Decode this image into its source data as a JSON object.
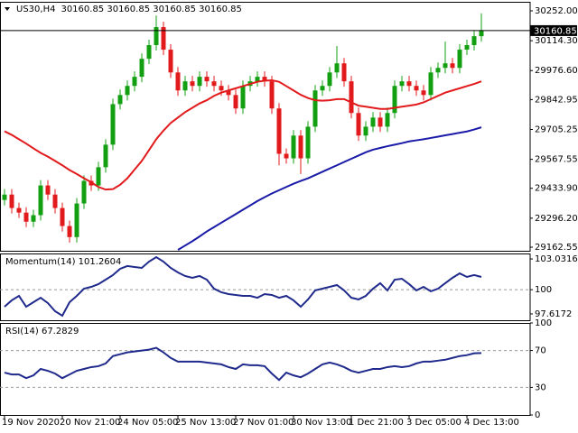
{
  "chart_data": [
    {
      "type": "candlestick",
      "title": "US30,H4",
      "subtitle": "30160.85 30160.85 30160.85 30160.85",
      "categories": [
        "19 Nov 2020",
        null,
        null,
        null,
        null,
        null,
        null,
        null,
        "20 Nov 21:00",
        null,
        null,
        null,
        null,
        null,
        null,
        null,
        "24 Nov 05:00",
        null,
        null,
        null,
        null,
        null,
        null,
        null,
        "25 Nov 13:00",
        null,
        null,
        null,
        null,
        null,
        null,
        null,
        "27 Nov 01:00",
        null,
        null,
        null,
        null,
        null,
        null,
        null,
        "30 Nov 13:00",
        null,
        null,
        null,
        null,
        null,
        null,
        null,
        "1 Dec 21:00",
        null,
        null,
        null,
        null,
        null,
        null,
        null,
        "3 Dec 05:00",
        null,
        null,
        null,
        null,
        null,
        null,
        null,
        "4 Dec 13:00",
        null,
        null
      ],
      "open": [
        29380,
        29405,
        29343,
        29322,
        29280,
        29310,
        29447,
        29405,
        29343,
        29260,
        29209,
        29364,
        29468,
        29447,
        29531,
        29635,
        29822,
        29864,
        29906,
        29948,
        30031,
        30094,
        30177,
        30073,
        29968,
        29885,
        29927,
        29906,
        29948,
        29927,
        29906,
        29885,
        29864,
        29802,
        29906,
        29927,
        29948,
        29927,
        29802,
        29593,
        29572,
        29677,
        29572,
        29718,
        29885,
        29906,
        29968,
        30010,
        29927,
        29781,
        29677,
        29718,
        29760,
        29718,
        29781,
        29906,
        29927,
        29906,
        29885,
        29864,
        29968,
        29989,
        30010,
        29989,
        30073,
        30094,
        30135
      ],
      "high": [
        29430,
        29430,
        29368,
        29347,
        29335,
        29472,
        29472,
        29430,
        29368,
        29285,
        29389,
        29493,
        29493,
        29556,
        29660,
        29847,
        29889,
        29931,
        29973,
        30056,
        30119,
        30230,
        30202,
        30098,
        29993,
        29952,
        29952,
        29973,
        29973,
        29952,
        29931,
        29910,
        29889,
        29931,
        29952,
        29973,
        29973,
        29952,
        29827,
        29618,
        29702,
        29702,
        29743,
        29910,
        29931,
        29993,
        30090,
        30035,
        29952,
        29806,
        29743,
        29785,
        29785,
        29806,
        29931,
        29952,
        29952,
        29931,
        29910,
        29993,
        30014,
        30110,
        30035,
        30098,
        30119,
        30160,
        30240
      ],
      "low": [
        29355,
        29318,
        29297,
        29255,
        29255,
        29285,
        29380,
        29318,
        29235,
        29184,
        29184,
        29339,
        29422,
        29422,
        29506,
        29610,
        29797,
        29839,
        29881,
        29923,
        30006,
        30069,
        30048,
        29943,
        29860,
        29860,
        29881,
        29881,
        29902,
        29881,
        29860,
        29839,
        29777,
        29777,
        29881,
        29902,
        29902,
        29777,
        29540,
        29547,
        29547,
        29500,
        29547,
        29693,
        29860,
        29881,
        29943,
        29902,
        29756,
        29652,
        29652,
        29693,
        29693,
        29693,
        29756,
        29881,
        29881,
        29860,
        29839,
        29839,
        29943,
        29964,
        29964,
        29964,
        30048,
        30069,
        30110
      ],
      "close": [
        29405,
        29343,
        29322,
        29280,
        29310,
        29447,
        29405,
        29343,
        29260,
        29209,
        29364,
        29468,
        29447,
        29531,
        29635,
        29822,
        29864,
        29906,
        29948,
        30031,
        30094,
        30177,
        30073,
        29968,
        29885,
        29927,
        29906,
        29948,
        29927,
        29906,
        29885,
        29864,
        29802,
        29906,
        29927,
        29948,
        29927,
        29802,
        29593,
        29572,
        29677,
        29572,
        29718,
        29885,
        29906,
        29968,
        30010,
        29927,
        29781,
        29677,
        29718,
        29760,
        29718,
        29781,
        29906,
        29927,
        29906,
        29885,
        29864,
        29968,
        29989,
        30010,
        29989,
        30073,
        30094,
        30135,
        30160.85
      ],
      "up_color": "#12a012",
      "down_color": "#e31a1c",
      "overlays": [
        {
          "color": "#e31a1c",
          "values": [
            29697,
            29680,
            29660,
            29640,
            29618,
            29597,
            29580,
            29560,
            29540,
            29518,
            29500,
            29480,
            29462,
            29440,
            29428,
            29430,
            29450,
            29480,
            29520,
            29560,
            29610,
            29660,
            29700,
            29735,
            29760,
            29785,
            29805,
            29825,
            29840,
            29860,
            29875,
            29885,
            29895,
            29905,
            29915,
            29925,
            29930,
            29932,
            29925,
            29905,
            29885,
            29865,
            29850,
            29840,
            29838,
            29840,
            29845,
            29845,
            29830,
            29815,
            29810,
            29805,
            29800,
            29800,
            29805,
            29810,
            29815,
            29820,
            29830,
            29845,
            29860,
            29875,
            29885,
            29895,
            29905,
            29915,
            29927
          ]
        },
        {
          "color": "#1a1aa8",
          "values": [
            null,
            null,
            null,
            null,
            null,
            null,
            null,
            null,
            null,
            null,
            null,
            null,
            null,
            null,
            null,
            null,
            null,
            null,
            null,
            null,
            null,
            null,
            null,
            null,
            29150,
            29170,
            29190,
            29212,
            29235,
            29255,
            29275,
            29295,
            29315,
            29335,
            29355,
            29375,
            29393,
            29410,
            29425,
            29440,
            29455,
            29468,
            29480,
            29495,
            29510,
            29525,
            29540,
            29555,
            29570,
            29585,
            29600,
            29612,
            29620,
            29628,
            29635,
            29642,
            29650,
            29655,
            29660,
            29666,
            29672,
            29678,
            29684,
            29690,
            29696,
            29705,
            29715
          ]
        }
      ],
      "current_price": 30160.85,
      "ylim": [
        29145.9,
        30293.6
      ],
      "yticks": [
        {
          "value": 30252,
          "label": "30252.00"
        },
        {
          "value": 30114.3,
          "label": "30114.30"
        },
        {
          "value": 29976.6,
          "label": "29976.60"
        },
        {
          "value": 29842.95,
          "label": "29842.95"
        },
        {
          "value": 29705.25,
          "label": "29705.25"
        },
        {
          "value": 29567.55,
          "label": "29567.55"
        },
        {
          "value": 29433.9,
          "label": "29433.90"
        },
        {
          "value": 29296.2,
          "label": "29296.20"
        },
        {
          "value": 29162.55,
          "label": "29162.55"
        }
      ]
    },
    {
      "type": "line",
      "title": "Momentum(14) 101.2604",
      "color": "#1f2a8c",
      "values": [
        98.32,
        98.95,
        99.39,
        98.32,
        98.77,
        99.21,
        98.68,
        97.88,
        97.44,
        98.77,
        99.39,
        100.1,
        100.28,
        100.55,
        100.99,
        101.44,
        102.06,
        102.33,
        102.24,
        102.15,
        102.77,
        103.21,
        102.77,
        102.15,
        101.7,
        101.35,
        101.17,
        101.35,
        100.99,
        100.1,
        99.75,
        99.57,
        99.48,
        99.39,
        99.39,
        99.21,
        99.57,
        99.48,
        99.21,
        99.39,
        98.95,
        98.32,
        99.04,
        99.93,
        100.1,
        100.28,
        100.46,
        99.93,
        99.21,
        99.04,
        99.39,
        100.1,
        100.64,
        99.93,
        100.99,
        101.08,
        100.55,
        99.93,
        100.28,
        99.84,
        100.1,
        100.64,
        101.17,
        101.61,
        101.26,
        101.44,
        101.2604
      ],
      "ylim": [
        96.99,
        103.57
      ],
      "yticks": [
        103.0316,
        100,
        97.6172
      ],
      "levels": [
        100
      ]
    },
    {
      "type": "line",
      "title": "RSI(14) 67.2829",
      "color": "#1f2a8c",
      "values": [
        46,
        44,
        44,
        40,
        43,
        50,
        48,
        45,
        40,
        44,
        48,
        50,
        52,
        53,
        56,
        64,
        66,
        68,
        69,
        70,
        71,
        73,
        68,
        62,
        58,
        58,
        58,
        58,
        57,
        56,
        55,
        52,
        50,
        55,
        54,
        54,
        53,
        45,
        38,
        46,
        43,
        41,
        45,
        50,
        55,
        57,
        55,
        52,
        48,
        46,
        48,
        50,
        50,
        52,
        53,
        52,
        53,
        56,
        58,
        58,
        59,
        60,
        62,
        64,
        65,
        67,
        67.2829
      ],
      "ylim": [
        0,
        100
      ],
      "yticks": [
        100,
        70,
        30,
        0
      ],
      "levels": [
        70,
        30
      ]
    }
  ]
}
